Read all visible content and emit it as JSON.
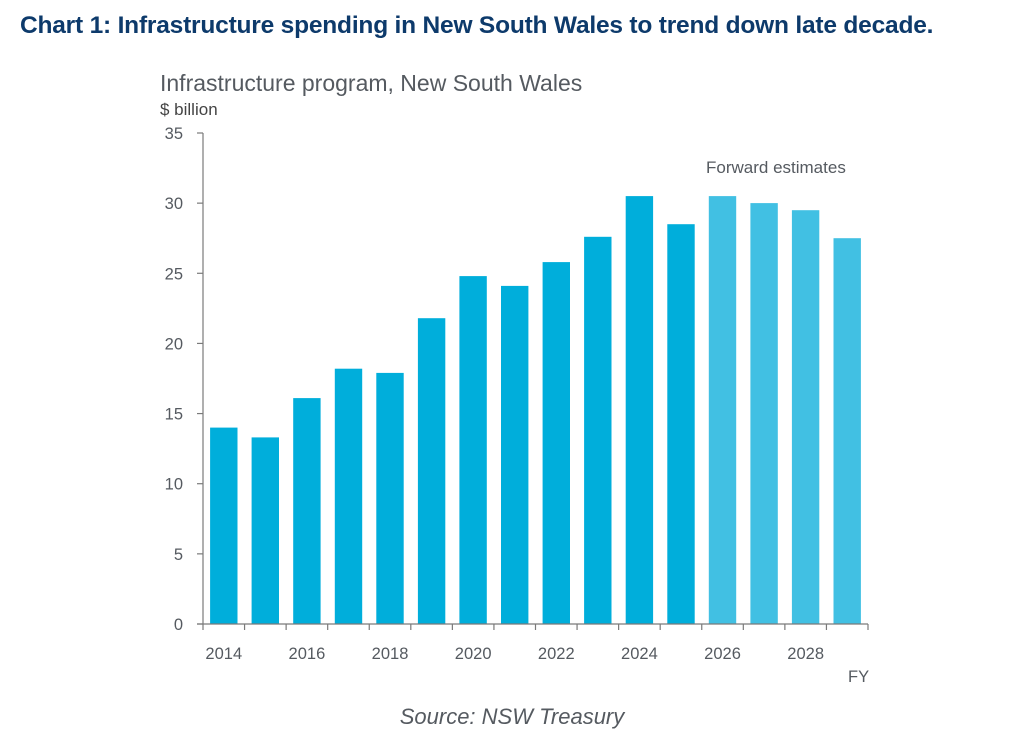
{
  "page": {
    "heading": "Chart 1: Infrastructure spending in New South Wales to trend down late decade.",
    "source": "Source: NSW Treasury"
  },
  "chart_data": {
    "type": "bar",
    "title": "Infrastructure program, New South Wales",
    "ylabel": "$ billion",
    "xlabel": "FY",
    "ylim": [
      0,
      35
    ],
    "yticks": [
      0,
      5,
      10,
      15,
      20,
      25,
      30,
      35
    ],
    "grid": false,
    "categories": [
      "2014",
      "2015",
      "2016",
      "2017",
      "2018",
      "2019",
      "2020",
      "2021",
      "2022",
      "2023",
      "2024",
      "2025",
      "2026",
      "2027",
      "2028",
      "2029"
    ],
    "xtick_labels": [
      "2014",
      "",
      "2016",
      "",
      "2018",
      "",
      "2020",
      "",
      "2022",
      "",
      "2024",
      "",
      "2026",
      "",
      "2028",
      ""
    ],
    "values": [
      14.0,
      13.3,
      16.1,
      18.2,
      17.9,
      21.8,
      24.8,
      24.1,
      25.8,
      27.6,
      30.5,
      28.5,
      30.5,
      30.0,
      29.5,
      27.5
    ],
    "forward_estimate_from": "2026",
    "annotation": "Forward estimates",
    "colors": {
      "actual": "#00aedb",
      "forward": "#41c0e3",
      "axis": "#7a7a7a"
    }
  }
}
